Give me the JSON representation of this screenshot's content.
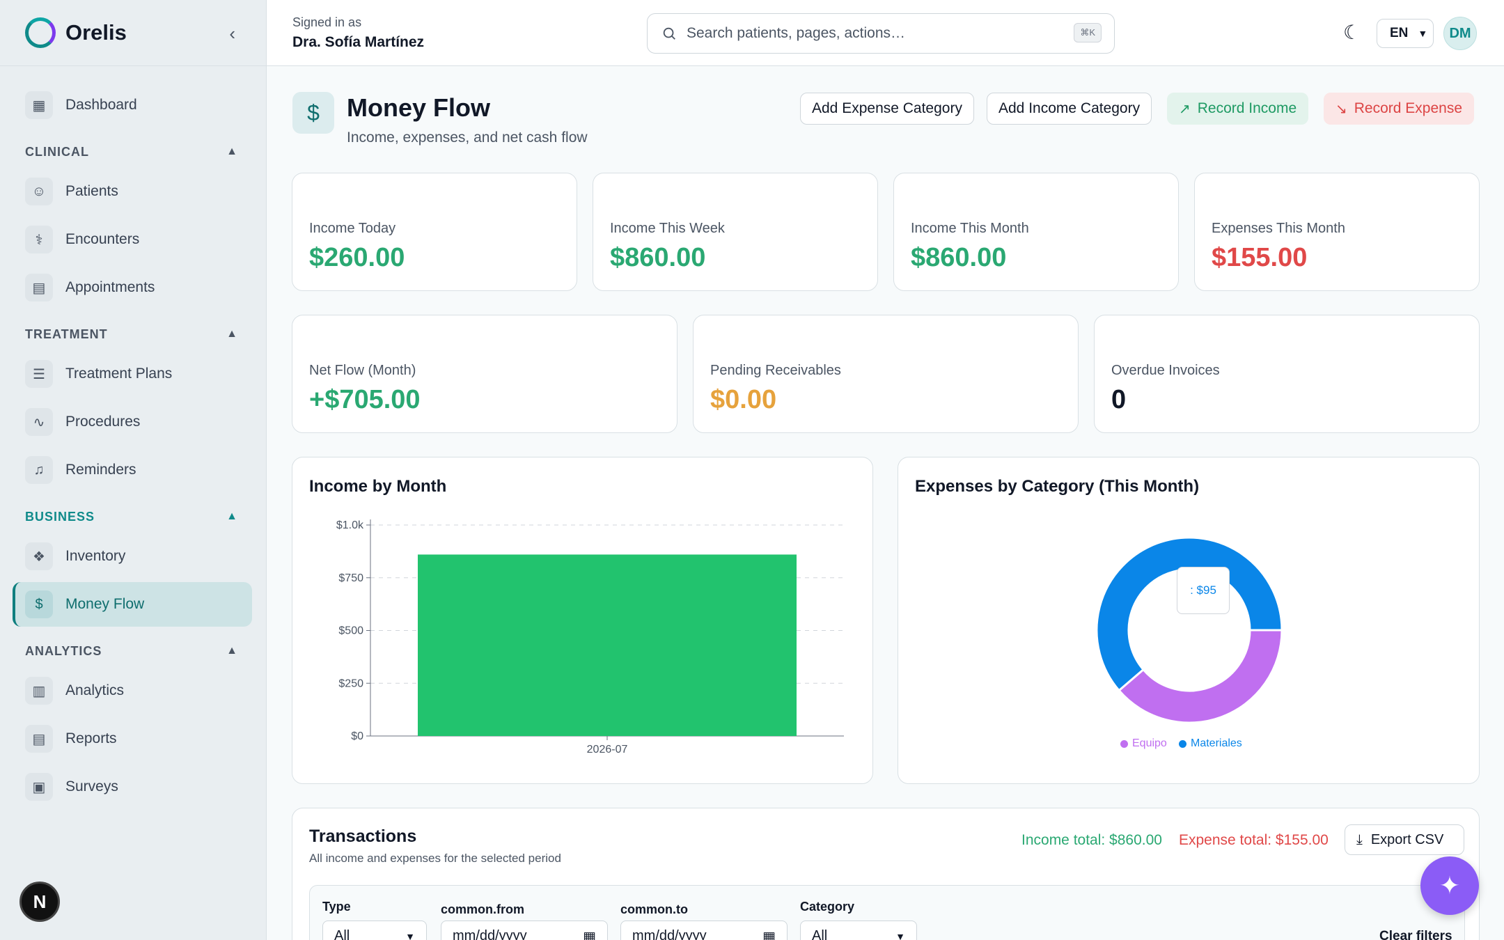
{
  "brand": {
    "name": "Orelis"
  },
  "sidebar": {
    "top": [
      {
        "label": "Dashboard",
        "icon": "grid-icon"
      }
    ],
    "sections": [
      {
        "title": "CLINICAL",
        "items": [
          {
            "label": "Patients",
            "icon": "users-icon"
          },
          {
            "label": "Encounters",
            "icon": "stethoscope-icon"
          },
          {
            "label": "Appointments",
            "icon": "clipboard-icon"
          }
        ]
      },
      {
        "title": "TREATMENT",
        "items": [
          {
            "label": "Treatment Plans",
            "icon": "list-check-icon"
          },
          {
            "label": "Procedures",
            "icon": "activity-icon"
          },
          {
            "label": "Reminders",
            "icon": "bell-icon"
          }
        ]
      },
      {
        "title": "BUSINESS",
        "items": [
          {
            "label": "Inventory",
            "icon": "boxes-icon"
          },
          {
            "label": "Money Flow",
            "icon": "dollar-icon"
          }
        ]
      },
      {
        "title": "ANALYTICS",
        "items": [
          {
            "label": "Analytics",
            "icon": "bar-chart-icon"
          },
          {
            "label": "Reports",
            "icon": "file-text-icon"
          },
          {
            "label": "Surveys",
            "icon": "clipboard-list-icon"
          }
        ]
      }
    ],
    "active": "Money Flow",
    "next_badge": "N"
  },
  "header": {
    "signed_in_caption": "Signed in as",
    "user_name": "Dra. Sofía Martínez",
    "search_placeholder": "Search patients, pages, actions…",
    "search_shortcut": "⌘K",
    "language": "EN",
    "avatar_initials": "DM"
  },
  "page": {
    "title": "Money Flow",
    "subtitle": "Income, expenses, and net cash flow",
    "buttons": {
      "add_expense_category": "Add Expense Category",
      "add_income_category": "Add Income Category",
      "record_income": "Record Income",
      "record_expense": "Record Expense"
    }
  },
  "stats_row1": [
    {
      "label": "Income Today",
      "value": "$260.00",
      "tone": "green"
    },
    {
      "label": "Income This Week",
      "value": "$860.00",
      "tone": "green"
    },
    {
      "label": "Income This Month",
      "value": "$860.00",
      "tone": "green"
    },
    {
      "label": "Expenses This Month",
      "value": "$155.00",
      "tone": "red"
    }
  ],
  "stats_row2": [
    {
      "label": "Net Flow (Month)",
      "value": "+$705.00",
      "tone": "green"
    },
    {
      "label": "Pending Receivables",
      "value": "$0.00",
      "tone": "orange"
    },
    {
      "label": "Overdue Invoices",
      "value": "0",
      "tone": "dark"
    }
  ],
  "chart_data": [
    {
      "type": "bar",
      "title": "Income by Month",
      "categories": [
        "2026-07"
      ],
      "values": [
        860
      ],
      "ylim": [
        0,
        1000
      ],
      "yticks": [
        "$0",
        "$250",
        "$500",
        "$750",
        "$1.0k"
      ],
      "ytick_values": [
        0,
        250,
        500,
        750,
        1000
      ],
      "color": "#22c36e",
      "grid": true
    },
    {
      "type": "pie",
      "title": "Expenses by Category (This Month)",
      "series": [
        {
          "name": "Equipo",
          "value": 60,
          "color": "#c06ff0"
        },
        {
          "name": "Materiales",
          "value": 95,
          "color": "#0a86e8"
        }
      ],
      "tooltip": ": $95",
      "legend_position": "bottom"
    }
  ],
  "transactions": {
    "title": "Transactions",
    "subtitle": "All income and expenses for the selected period",
    "income_total": "Income total: $860.00",
    "expense_total": "Expense total: $155.00",
    "export_label": "Export CSV",
    "filters": {
      "type_label": "Type",
      "type_value": "All",
      "from_label": "common.from",
      "from_placeholder": "mm/dd/yyyy",
      "to_label": "common.to",
      "to_placeholder": "mm/dd/yyyy",
      "category_label": "Category",
      "category_value": "All",
      "clear_label": "Clear filters"
    }
  }
}
